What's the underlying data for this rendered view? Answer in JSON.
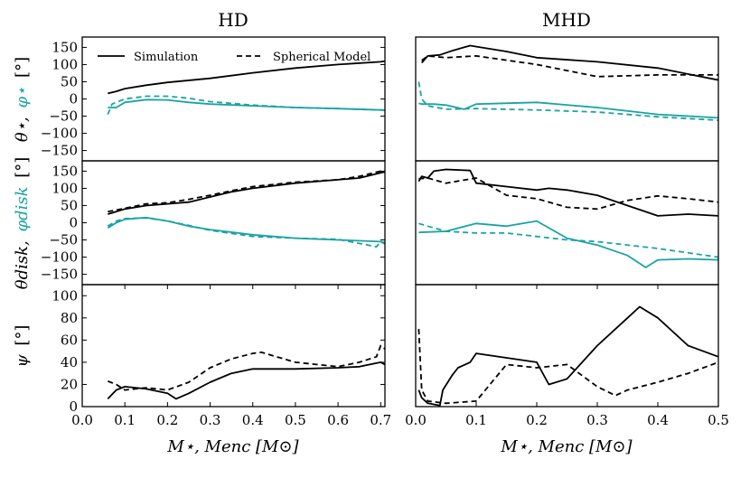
{
  "columns": [
    "HD",
    "MHD"
  ],
  "x_labels": [
    "M⋆, Menc [M⊙]",
    "M⋆, Menc [M⊙]"
  ],
  "row_ylabels": [
    {
      "black": "θ⋆,",
      "teal": "φ⋆",
      "unit": "[°]"
    },
    {
      "black": "θdisk,",
      "teal": "φdisk",
      "unit": "[°]"
    },
    {
      "black": "ψ",
      "teal": "",
      "unit": "[°]"
    }
  ],
  "legend": {
    "solid": "Simulation",
    "dashed": "Spherical Model"
  },
  "colors": {
    "theta": "#000000",
    "phi": "#1aa3a3"
  },
  "chart_data": [
    {
      "type": "line",
      "panel": "HD-top",
      "xlim": [
        0,
        0.71
      ],
      "ylim": [
        -180,
        180
      ],
      "yticks": [
        -150,
        -100,
        -50,
        0,
        50,
        100,
        150
      ],
      "xticks": [],
      "series": [
        {
          "name": "theta_sim",
          "color": "theta",
          "style": "solid",
          "x": [
            0.06,
            0.08,
            0.1,
            0.15,
            0.2,
            0.3,
            0.4,
            0.5,
            0.6,
            0.7,
            0.71
          ],
          "y": [
            16,
            22,
            30,
            40,
            48,
            60,
            76,
            90,
            100,
            108,
            110
          ]
        },
        {
          "name": "phi_model",
          "color": "phi",
          "style": "dashed",
          "x": [
            0.06,
            0.07,
            0.1,
            0.15,
            0.2,
            0.25,
            0.3,
            0.4,
            0.5,
            0.6,
            0.7,
            0.71
          ],
          "y": [
            -45,
            -15,
            0,
            8,
            8,
            2,
            -8,
            -18,
            -25,
            -28,
            -32,
            -33
          ]
        },
        {
          "name": "phi_sim",
          "color": "phi",
          "style": "solid",
          "x": [
            0.06,
            0.08,
            0.1,
            0.15,
            0.2,
            0.25,
            0.3,
            0.4,
            0.5,
            0.6,
            0.7,
            0.71
          ],
          "y": [
            -25,
            -25,
            -10,
            -2,
            -3,
            -10,
            -15,
            -20,
            -25,
            -28,
            -32,
            -33
          ]
        }
      ]
    },
    {
      "type": "line",
      "panel": "HD-mid",
      "xlim": [
        0,
        0.71
      ],
      "ylim": [
        -180,
        180
      ],
      "yticks": [
        -150,
        -100,
        -50,
        0,
        50,
        100,
        150
      ],
      "xticks": [],
      "series": [
        {
          "name": "theta_sim",
          "color": "theta",
          "style": "solid",
          "x": [
            0.06,
            0.1,
            0.15,
            0.2,
            0.25,
            0.3,
            0.35,
            0.4,
            0.5,
            0.6,
            0.65,
            0.7,
            0.71
          ],
          "y": [
            25,
            40,
            50,
            55,
            60,
            75,
            90,
            100,
            115,
            125,
            130,
            145,
            148
          ]
        },
        {
          "name": "theta_model",
          "color": "theta",
          "style": "dashed",
          "x": [
            0.06,
            0.1,
            0.15,
            0.2,
            0.25,
            0.3,
            0.35,
            0.4,
            0.5,
            0.6,
            0.65,
            0.7,
            0.71
          ],
          "y": [
            32,
            42,
            55,
            58,
            68,
            80,
            93,
            105,
            118,
            125,
            135,
            150,
            150
          ]
        },
        {
          "name": "phi_sim",
          "color": "phi",
          "style": "solid",
          "x": [
            0.06,
            0.08,
            0.1,
            0.15,
            0.2,
            0.25,
            0.3,
            0.4,
            0.5,
            0.6,
            0.7,
            0.71
          ],
          "y": [
            -15,
            0,
            10,
            15,
            5,
            -10,
            -20,
            -35,
            -45,
            -50,
            -55,
            -58
          ]
        },
        {
          "name": "phi_model",
          "color": "phi",
          "style": "dashed",
          "x": [
            0.06,
            0.08,
            0.1,
            0.15,
            0.2,
            0.25,
            0.3,
            0.4,
            0.5,
            0.6,
            0.69,
            0.7,
            0.71
          ],
          "y": [
            -10,
            5,
            12,
            14,
            5,
            -8,
            -22,
            -40,
            -45,
            -48,
            -70,
            -55,
            -62
          ]
        }
      ]
    },
    {
      "type": "line",
      "panel": "HD-bot",
      "xlim": [
        0,
        0.71
      ],
      "ylim": [
        0,
        110
      ],
      "yticks": [
        0,
        20,
        40,
        60,
        80,
        100
      ],
      "xticks": [
        0.0,
        0.1,
        0.2,
        0.3,
        0.4,
        0.5,
        0.6,
        0.7
      ],
      "series": [
        {
          "name": "psi_sim",
          "color": "theta",
          "style": "solid",
          "x": [
            0.06,
            0.08,
            0.1,
            0.15,
            0.2,
            0.22,
            0.25,
            0.3,
            0.35,
            0.4,
            0.5,
            0.6,
            0.65,
            0.7,
            0.71
          ],
          "y": [
            7,
            15,
            18,
            16,
            12,
            7,
            12,
            22,
            30,
            34,
            34,
            35,
            36,
            40,
            38
          ]
        },
        {
          "name": "psi_model",
          "color": "theta",
          "style": "dashed",
          "x": [
            0.06,
            0.08,
            0.1,
            0.15,
            0.2,
            0.25,
            0.3,
            0.35,
            0.4,
            0.42,
            0.5,
            0.6,
            0.65,
            0.69,
            0.7,
            0.71
          ],
          "y": [
            23,
            20,
            15,
            17,
            15,
            22,
            35,
            43,
            48,
            49,
            40,
            36,
            40,
            45,
            55,
            52
          ]
        }
      ]
    },
    {
      "type": "line",
      "panel": "MHD-top",
      "xlim": [
        0,
        0.5
      ],
      "ylim": [
        -180,
        180
      ],
      "yticks": [],
      "xticks": [],
      "series": [
        {
          "name": "theta_sim",
          "color": "theta",
          "style": "solid",
          "x": [
            0.01,
            0.02,
            0.04,
            0.06,
            0.09,
            0.15,
            0.2,
            0.3,
            0.4,
            0.5
          ],
          "y": [
            105,
            125,
            128,
            140,
            155,
            138,
            120,
            108,
            90,
            55
          ]
        },
        {
          "name": "theta_model",
          "color": "theta",
          "style": "dashed",
          "x": [
            0.01,
            0.02,
            0.05,
            0.1,
            0.2,
            0.3,
            0.4,
            0.5
          ],
          "y": [
            112,
            125,
            120,
            125,
            100,
            65,
            70,
            70
          ]
        },
        {
          "name": "phi_model",
          "color": "phi",
          "style": "dashed",
          "x": [
            0.005,
            0.01,
            0.02,
            0.05,
            0.1,
            0.2,
            0.3,
            0.4,
            0.5
          ],
          "y": [
            50,
            0,
            -20,
            -30,
            -28,
            -32,
            -38,
            -52,
            -62
          ]
        },
        {
          "name": "phi_sim",
          "color": "phi",
          "style": "solid",
          "x": [
            0.005,
            0.01,
            0.03,
            0.05,
            0.08,
            0.1,
            0.2,
            0.3,
            0.4,
            0.5
          ],
          "y": [
            -13,
            -15,
            -15,
            -18,
            -30,
            -15,
            -10,
            -25,
            -45,
            -55
          ]
        }
      ]
    },
    {
      "type": "line",
      "panel": "MHD-mid",
      "xlim": [
        0,
        0.5
      ],
      "ylim": [
        -180,
        180
      ],
      "yticks": [],
      "xticks": [],
      "series": [
        {
          "name": "theta_sim",
          "color": "theta",
          "style": "solid",
          "x": [
            0.005,
            0.01,
            0.02,
            0.03,
            0.05,
            0.09,
            0.1,
            0.15,
            0.2,
            0.22,
            0.25,
            0.3,
            0.35,
            0.4,
            0.45,
            0.5
          ],
          "y": [
            120,
            135,
            130,
            150,
            155,
            152,
            115,
            105,
            95,
            100,
            95,
            80,
            50,
            20,
            25,
            20
          ]
        },
        {
          "name": "theta_model",
          "color": "theta",
          "style": "dashed",
          "x": [
            0.005,
            0.02,
            0.05,
            0.1,
            0.15,
            0.2,
            0.25,
            0.3,
            0.35,
            0.4,
            0.45,
            0.5
          ],
          "y": [
            128,
            130,
            115,
            130,
            80,
            70,
            45,
            40,
            65,
            78,
            70,
            60
          ]
        },
        {
          "name": "phi_sim",
          "color": "phi",
          "style": "solid",
          "x": [
            0.005,
            0.05,
            0.1,
            0.15,
            0.2,
            0.25,
            0.3,
            0.35,
            0.38,
            0.4,
            0.45,
            0.5
          ],
          "y": [
            -28,
            -25,
            -2,
            -10,
            5,
            -45,
            -65,
            -95,
            -130,
            -108,
            -105,
            -108
          ]
        },
        {
          "name": "phi_model",
          "color": "phi",
          "style": "dashed",
          "x": [
            0.005,
            0.02,
            0.05,
            0.1,
            0.15,
            0.2,
            0.25,
            0.3,
            0.4,
            0.5
          ],
          "y": [
            -2,
            -10,
            -25,
            -30,
            -30,
            -40,
            -50,
            -55,
            -75,
            -100
          ]
        }
      ]
    },
    {
      "type": "line",
      "panel": "MHD-bot",
      "xlim": [
        0,
        0.5
      ],
      "ylim": [
        0,
        110
      ],
      "yticks": [],
      "xticks": [
        0.0,
        0.1,
        0.2,
        0.3,
        0.4,
        0.5
      ],
      "series": [
        {
          "name": "psi_sim",
          "color": "theta",
          "style": "solid",
          "x": [
            0.005,
            0.01,
            0.02,
            0.04,
            0.045,
            0.06,
            0.07,
            0.09,
            0.1,
            0.2,
            0.22,
            0.25,
            0.3,
            0.35,
            0.37,
            0.4,
            0.45,
            0.5
          ],
          "y": [
            15,
            8,
            3,
            1,
            15,
            28,
            35,
            40,
            48,
            40,
            20,
            25,
            55,
            80,
            90,
            80,
            55,
            45
          ]
        },
        {
          "name": "psi_model",
          "color": "theta",
          "style": "dashed",
          "x": [
            0.005,
            0.01,
            0.02,
            0.05,
            0.1,
            0.15,
            0.2,
            0.25,
            0.3,
            0.33,
            0.35,
            0.4,
            0.45,
            0.5
          ],
          "y": [
            70,
            15,
            5,
            3,
            5,
            38,
            35,
            38,
            18,
            10,
            15,
            22,
            30,
            40
          ]
        }
      ]
    }
  ]
}
